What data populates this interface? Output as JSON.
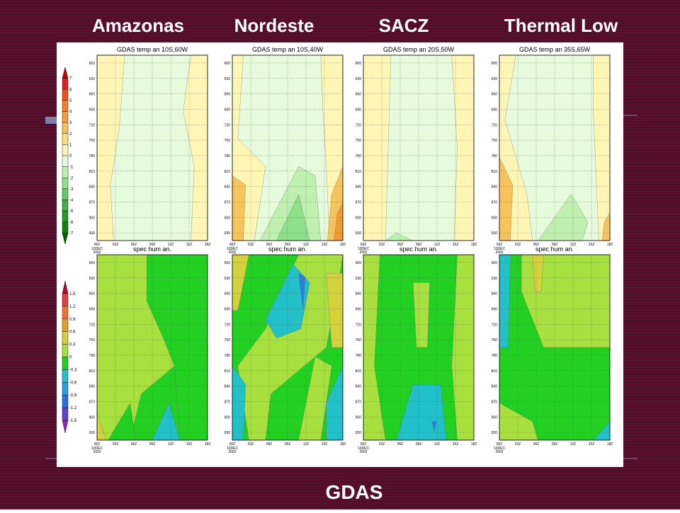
{
  "slide": {
    "region_titles": [
      "Amazonas",
      "Nordeste",
      "SACZ",
      "Thermal Low"
    ],
    "footer": "GDAS",
    "temp_titles": [
      "GDAS temp an 10S,60W",
      "GDAS temp an 10S,40W",
      "GDAS temp an 20S,50W",
      "GDAS temp an 35S,65W"
    ],
    "hum_title": "spec hum an.",
    "y_ticks": [
      "600",
      "630",
      "660",
      "690",
      "720",
      "750",
      "780",
      "810",
      "840",
      "870",
      "900",
      "930"
    ],
    "x_ticks": [
      "00Z",
      "03Z",
      "06Z",
      "09Z",
      "12Z",
      "15Z",
      "18Z"
    ],
    "x_first_sub": [
      "10DEC",
      "2002"
    ],
    "temp_scale": [
      "7",
      "6",
      "5",
      "4",
      "3",
      "2",
      "1",
      "0",
      "-1",
      "-2",
      "-3",
      "-4",
      "-5",
      "-6",
      "-7"
    ],
    "hum_scale": [
      "1.5",
      "1.2",
      "0.9",
      "0.6",
      "0.3",
      "0",
      "-0.3",
      "-0.6",
      "-0.9",
      "-1.2",
      "-1.5"
    ]
  }
}
